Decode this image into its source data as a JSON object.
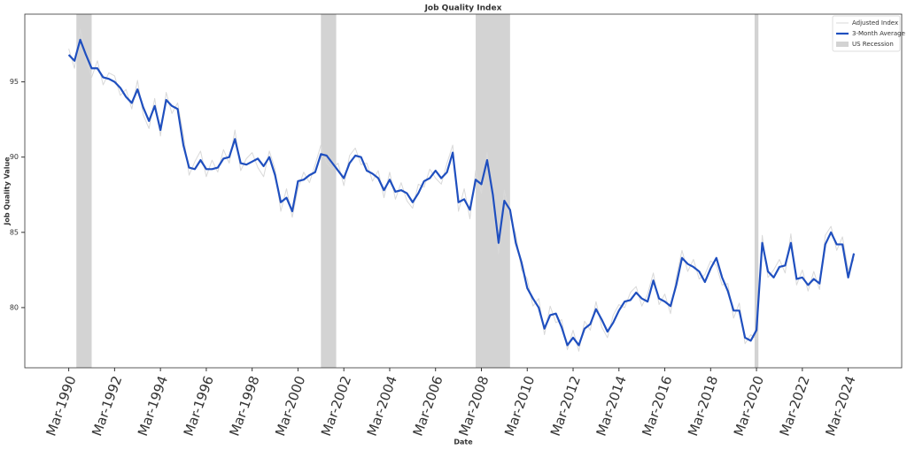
{
  "chart_data": {
    "type": "line",
    "title": "Job Quality Index",
    "x_label": "Date",
    "y_label": "Job Quality Value",
    "x": [
      "Mar-1990",
      "Jun-1990",
      "Sep-1990",
      "Dec-1990",
      "Mar-1991",
      "Jun-1991",
      "Sep-1991",
      "Dec-1991",
      "Mar-1992",
      "Jun-1992",
      "Sep-1992",
      "Dec-1992",
      "Mar-1993",
      "Jun-1993",
      "Sep-1993",
      "Dec-1993",
      "Mar-1994",
      "Jun-1994",
      "Sep-1994",
      "Dec-1994",
      "Mar-1995",
      "Jun-1995",
      "Sep-1995",
      "Dec-1995",
      "Mar-1996",
      "Jun-1996",
      "Sep-1996",
      "Dec-1996",
      "Mar-1997",
      "Jun-1997",
      "Sep-1997",
      "Dec-1997",
      "Mar-1998",
      "Jun-1998",
      "Sep-1998",
      "Dec-1998",
      "Mar-1999",
      "Jun-1999",
      "Sep-1999",
      "Dec-1999",
      "Mar-2000",
      "Jun-2000",
      "Sep-2000",
      "Dec-2000",
      "Mar-2001",
      "Jun-2001",
      "Sep-2001",
      "Dec-2001",
      "Mar-2002",
      "Jun-2002",
      "Sep-2002",
      "Dec-2002",
      "Mar-2003",
      "Jun-2003",
      "Sep-2003",
      "Dec-2003",
      "Mar-2004",
      "Jun-2004",
      "Sep-2004",
      "Dec-2004",
      "Mar-2005",
      "Jun-2005",
      "Sep-2005",
      "Dec-2005",
      "Mar-2006",
      "Jun-2006",
      "Sep-2006",
      "Dec-2006",
      "Mar-2007",
      "Jun-2007",
      "Sep-2007",
      "Dec-2007",
      "Mar-2008",
      "Jun-2008",
      "Sep-2008",
      "Dec-2008",
      "Mar-2009",
      "Jun-2009",
      "Sep-2009",
      "Dec-2009",
      "Mar-2010",
      "Jun-2010",
      "Sep-2010",
      "Dec-2010",
      "Mar-2011",
      "Jun-2011",
      "Sep-2011",
      "Dec-2011",
      "Mar-2012",
      "Jun-2012",
      "Sep-2012",
      "Dec-2012",
      "Mar-2013",
      "Jun-2013",
      "Sep-2013",
      "Dec-2013",
      "Mar-2014",
      "Jun-2014",
      "Sep-2014",
      "Dec-2014",
      "Mar-2015",
      "Jun-2015",
      "Sep-2015",
      "Dec-2015",
      "Mar-2016",
      "Jun-2016",
      "Sep-2016",
      "Dec-2016",
      "Mar-2017",
      "Jun-2017",
      "Sep-2017",
      "Dec-2017",
      "Mar-2018",
      "Jun-2018",
      "Sep-2018",
      "Dec-2018",
      "Mar-2019",
      "Jun-2019",
      "Sep-2019",
      "Dec-2019",
      "Mar-2020",
      "Jun-2020",
      "Sep-2020",
      "Dec-2020",
      "Mar-2021",
      "Jun-2021",
      "Sep-2021",
      "Dec-2021",
      "Mar-2022",
      "Jun-2022",
      "Sep-2022",
      "Dec-2022",
      "Mar-2023",
      "Jun-2023",
      "Sep-2023",
      "Dec-2023",
      "Mar-2024",
      "Jun-2024"
    ],
    "series": [
      {
        "name": "Adjusted Index",
        "color": "#d9d9d9",
        "width": 1,
        "values": [
          97.2,
          95.9,
          98.5,
          96.5,
          95.3,
          96.4,
          94.8,
          95.6,
          95.4,
          94.1,
          94.5,
          93.2,
          95.1,
          92.8,
          91.9,
          93.9,
          91.4,
          94.3,
          92.9,
          93.6,
          91.5,
          88.8,
          89.7,
          90.4,
          88.7,
          89.8,
          89.0,
          90.5,
          89.6,
          91.8,
          89.1,
          89.9,
          90.3,
          89.3,
          88.7,
          90.4,
          89.2,
          86.4,
          87.9,
          86.0,
          87.9,
          89.0,
          88.3,
          89.5,
          90.8,
          89.6,
          89.2,
          89.6,
          88.1,
          90.1,
          90.6,
          89.5,
          89.6,
          88.4,
          89.1,
          87.3,
          89.0,
          87.2,
          88.3,
          87.1,
          86.6,
          88.2,
          88.0,
          89.2,
          88.6,
          88.2,
          89.6,
          90.8,
          86.4,
          87.9,
          85.9,
          89.1,
          87.6,
          90.3,
          86.9,
          83.6,
          87.8,
          86.0,
          84.9,
          82.5,
          81.9,
          80.1,
          80.6,
          78.2,
          80.1,
          79.0,
          79.2,
          77.2,
          78.5,
          77.1,
          79.1,
          78.5,
          80.4,
          78.7,
          78.0,
          79.5,
          80.2,
          80.0,
          81.0,
          81.4,
          80.1,
          80.9,
          82.3,
          80.2,
          80.9,
          79.6,
          82.0,
          83.8,
          82.4,
          83.2,
          81.9,
          82.2,
          83.1,
          82.8,
          81.5,
          81.6,
          79.3,
          80.3,
          77.6,
          78.2,
          77.9,
          84.8,
          82.0,
          82.5,
          83.2,
          82.3,
          84.9,
          81.5,
          82.5,
          81.1,
          82.4,
          81.2,
          84.8,
          85.4,
          83.8,
          84.7,
          82.5,
          83.2
        ]
      },
      {
        "name": "3-Month Average",
        "color": "#1f4fbf",
        "width": 2.2,
        "values": [
          96.8,
          96.4,
          97.8,
          96.8,
          95.9,
          95.9,
          95.3,
          95.2,
          95.0,
          94.6,
          94.0,
          93.6,
          94.5,
          93.3,
          92.4,
          93.4,
          91.8,
          93.8,
          93.4,
          93.2,
          90.8,
          89.3,
          89.2,
          89.8,
          89.2,
          89.2,
          89.3,
          89.9,
          90.0,
          91.2,
          89.6,
          89.5,
          89.7,
          89.9,
          89.4,
          90.0,
          88.8,
          87.0,
          87.3,
          86.4,
          88.4,
          88.5,
          88.8,
          89.0,
          90.2,
          90.1,
          89.6,
          89.1,
          88.6,
          89.6,
          90.1,
          90.0,
          89.1,
          88.9,
          88.6,
          87.8,
          88.5,
          87.7,
          87.8,
          87.6,
          87.0,
          87.6,
          88.4,
          88.6,
          89.1,
          88.6,
          89.0,
          90.3,
          87.0,
          87.2,
          86.5,
          88.5,
          88.2,
          89.8,
          87.5,
          84.3,
          87.1,
          86.5,
          84.3,
          83.0,
          81.3,
          80.6,
          80.0,
          78.6,
          79.5,
          79.6,
          78.7,
          77.5,
          78.0,
          77.5,
          78.6,
          78.9,
          79.9,
          79.2,
          78.4,
          79.0,
          79.8,
          80.4,
          80.5,
          81.0,
          80.6,
          80.4,
          81.8,
          80.6,
          80.4,
          80.1,
          81.5,
          83.3,
          82.9,
          82.7,
          82.4,
          81.7,
          82.6,
          83.3,
          82.0,
          81.1,
          79.8,
          79.8,
          78.0,
          77.8,
          78.5,
          84.3,
          82.4,
          82.0,
          82.7,
          82.8,
          84.3,
          81.9,
          82.0,
          81.5,
          81.9,
          81.6,
          84.2,
          85.0,
          84.2,
          84.2,
          82.0,
          83.6
        ]
      }
    ],
    "recession": {
      "name": "US Recession",
      "color": "#d3d3d3",
      "periods": [
        [
          "Jul-1990",
          "Mar-1991"
        ],
        [
          "Mar-2001",
          "Nov-2001"
        ],
        [
          "Dec-2007",
          "Jun-2009"
        ],
        [
          "Feb-2020",
          "Apr-2020"
        ]
      ]
    },
    "xlim": [
      "Apr-1988",
      "Jul-2026"
    ],
    "xticks": [
      "Mar-1990",
      "Mar-1992",
      "Mar-1994",
      "Mar-1996",
      "Mar-1998",
      "Mar-2000",
      "Mar-2002",
      "Mar-2004",
      "Mar-2006",
      "Mar-2008",
      "Mar-2010",
      "Mar-2012",
      "Mar-2014",
      "Mar-2016",
      "Mar-2018",
      "Mar-2020",
      "Mar-2022",
      "Mar-2024"
    ],
    "ylim": [
      76,
      99.5
    ],
    "yticks": [
      80,
      85,
      90,
      95
    ],
    "grid": false,
    "legend": "upper right"
  }
}
